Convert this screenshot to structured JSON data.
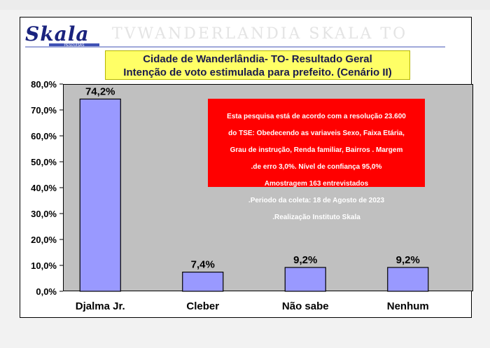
{
  "header": {
    "logo_text": "Skala",
    "logo_subtext": "PESQUISAS"
  },
  "title": {
    "line1": "Cidade de Wanderlândia- TO- Resultado Geral",
    "line2": "Intenção de voto estimulada para prefeito. (Cenário II)"
  },
  "note": {
    "lines": [
      "Esta pesquisa está de acordo com a resolução 23.600",
      "do TSE: Obedecendo as variaveis Sexo, Faixa Etária,",
      "Grau de instrução, Renda familiar, Bairros . Margem",
      ".de erro 3,0%. Nível de confiança 95,0%",
      "Amostragem 163  entrevistados",
      ".Periodo da coleta: 18 de Agosto de 2023",
      ".Realização Instituto Skala"
    ]
  },
  "colors": {
    "bar_fill": "#9999ff",
    "plot_bg": "#c0c0c0",
    "note_bg": "#ff0000",
    "title_bg": "#ffff66"
  },
  "chart_data": {
    "type": "bar",
    "categories": [
      "Djalma Jr.",
      "Cleber",
      "Não sabe",
      "Nenhum"
    ],
    "values": [
      74.2,
      7.4,
      9.2,
      9.2
    ],
    "data_labels": [
      "74,2%",
      "7,4%",
      "9,2%",
      "9,2%"
    ],
    "yticks": [
      "0,0%",
      "10,0%",
      "20,0%",
      "30,0%",
      "40,0%",
      "50,0%",
      "60,0%",
      "70,0%",
      "80,0%"
    ],
    "ylim": [
      0,
      80
    ],
    "grid": false,
    "legend": "none"
  }
}
